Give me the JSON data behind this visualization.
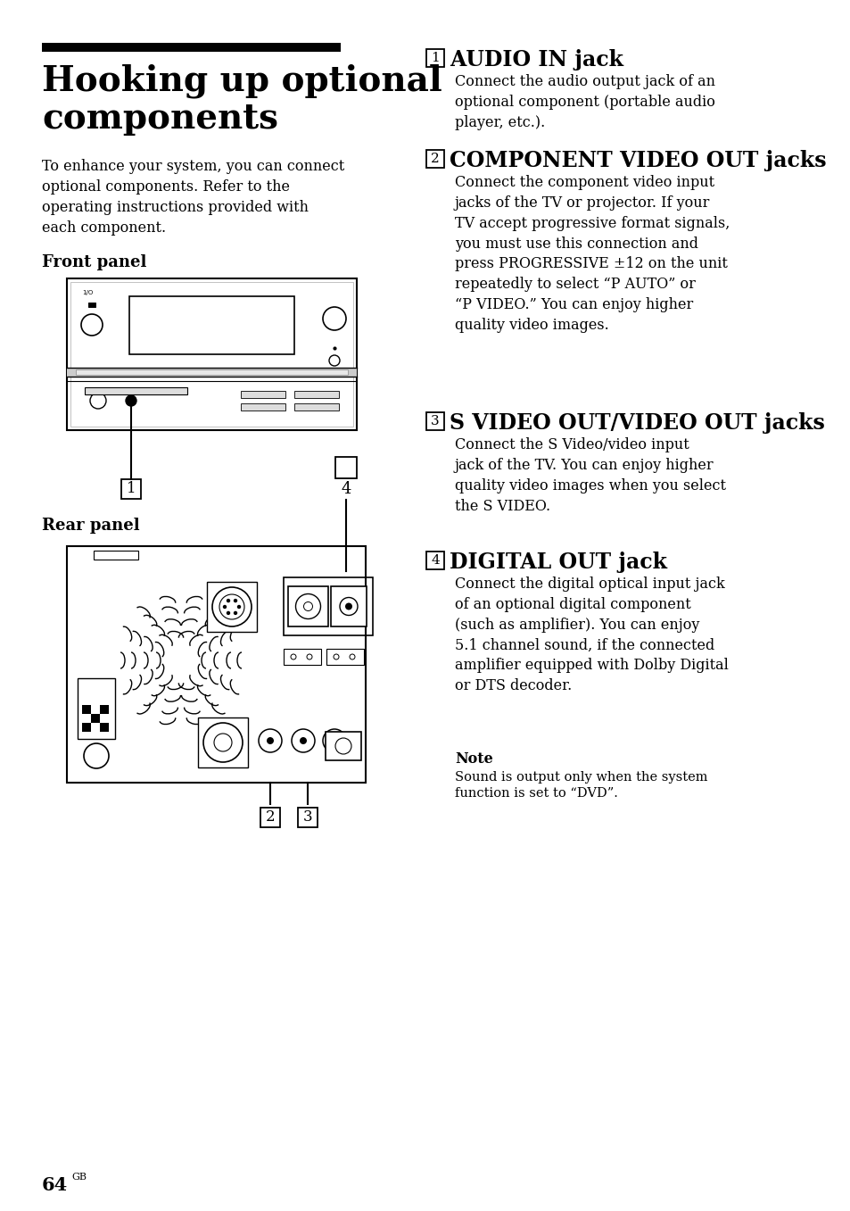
{
  "bg_color": "#ffffff",
  "title": "Hooking up optional\ncomponents",
  "title_fontsize": 28,
  "body_intro": "To enhance your system, you can connect\noptional components. Refer to the\noperating instructions provided with\neach component.",
  "front_panel_label": "Front panel",
  "rear_panel_label": "Rear panel",
  "section1_head": "AUDIO IN jack",
  "section1_num": "1",
  "section1_body": "Connect the audio output jack of an\noptional component (portable audio\nplayer, etc.).",
  "section2_head": "COMPONENT VIDEO OUT jacks",
  "section2_num": "2",
  "section2_body": "Connect the component video input\njacks of the TV or projector. If your\nTV accept progressive format signals,\nyou must use this connection and\npress PROGRESSIVE ±12 on the unit\nrepeatedly to select “P AUTO” or\n“P VIDEO.” You can enjoy higher\nquality video images.",
  "section3_head": "S VIDEO OUT/VIDEO OUT jacks",
  "section3_num": "3",
  "section3_body": "Connect the S Video/video input\njack of the TV. You can enjoy higher\nquality video images when you select\nthe S VIDEO.",
  "section4_head": "DIGITAL OUT jack",
  "section4_num": "4",
  "section4_body": "Connect the digital optical input jack\nof an optional digital component\n(such as amplifier). You can enjoy\n5.1 channel sound, if the connected\namplifier equipped with Dolby Digital\nor DTS decoder.",
  "note_title": "Note",
  "note_body": "Sound is output only when the system\nfunction is set to “DVD”.",
  "page_number": "64",
  "page_suffix": "GB"
}
